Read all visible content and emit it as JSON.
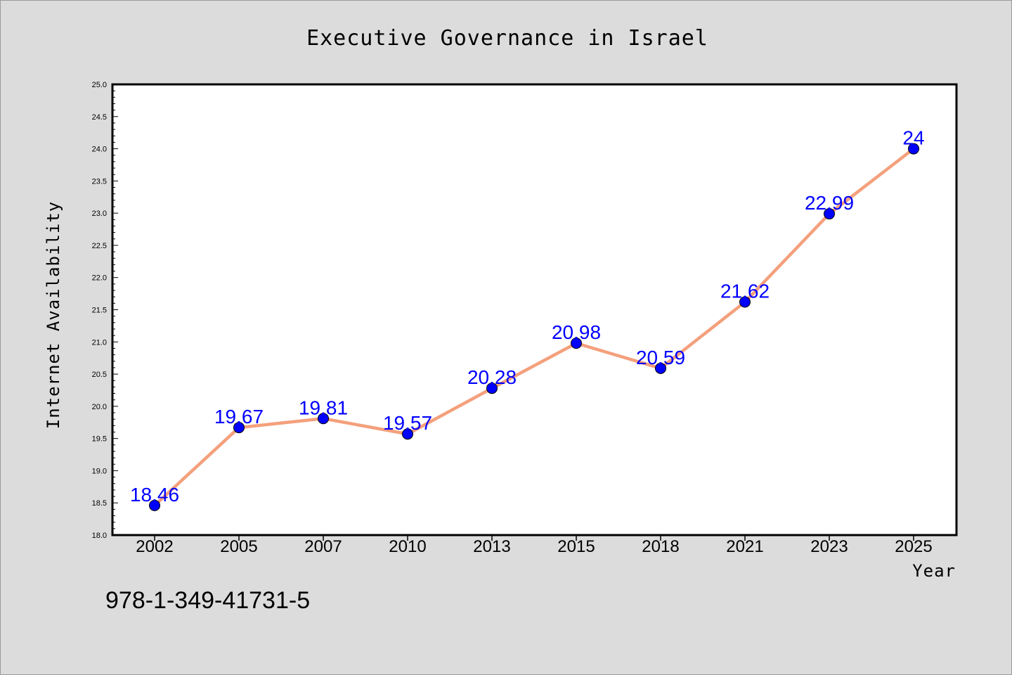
{
  "chart_data": {
    "type": "line",
    "title": "Executive Governance in Israel",
    "xlabel": "Year",
    "ylabel": "Internet Availability",
    "categories": [
      "2002",
      "2005",
      "2007",
      "2010",
      "2013",
      "2015",
      "2018",
      "2021",
      "2023",
      "2025"
    ],
    "series": [
      {
        "values": [
          18.46,
          19.67,
          19.81,
          19.57,
          20.28,
          20.98,
          20.59,
          21.62,
          22.99,
          24
        ],
        "labels": [
          "18.46",
          "19.67",
          "19.81",
          "19.57",
          "20.28",
          "20.98",
          "20.59",
          "21.62",
          "22.99",
          "24"
        ]
      }
    ],
    "ylim": [
      18.0,
      25.0
    ],
    "yticks": [
      "18.0",
      "18.5",
      "19.0",
      "19.5",
      "20.0",
      "20.5",
      "21.0",
      "21.5",
      "22.0",
      "22.5",
      "23.0",
      "23.5",
      "24.0",
      "24.5",
      "25.0"
    ],
    "grid": false,
    "legend": "none",
    "colors": {
      "line": "#f4a07c",
      "marker": "#0000ff",
      "data_label": "#0000ff",
      "plot_background": "#ffffff",
      "figure_background": "#dcdcdc"
    }
  },
  "footnote": "978-1-349-41731-5"
}
